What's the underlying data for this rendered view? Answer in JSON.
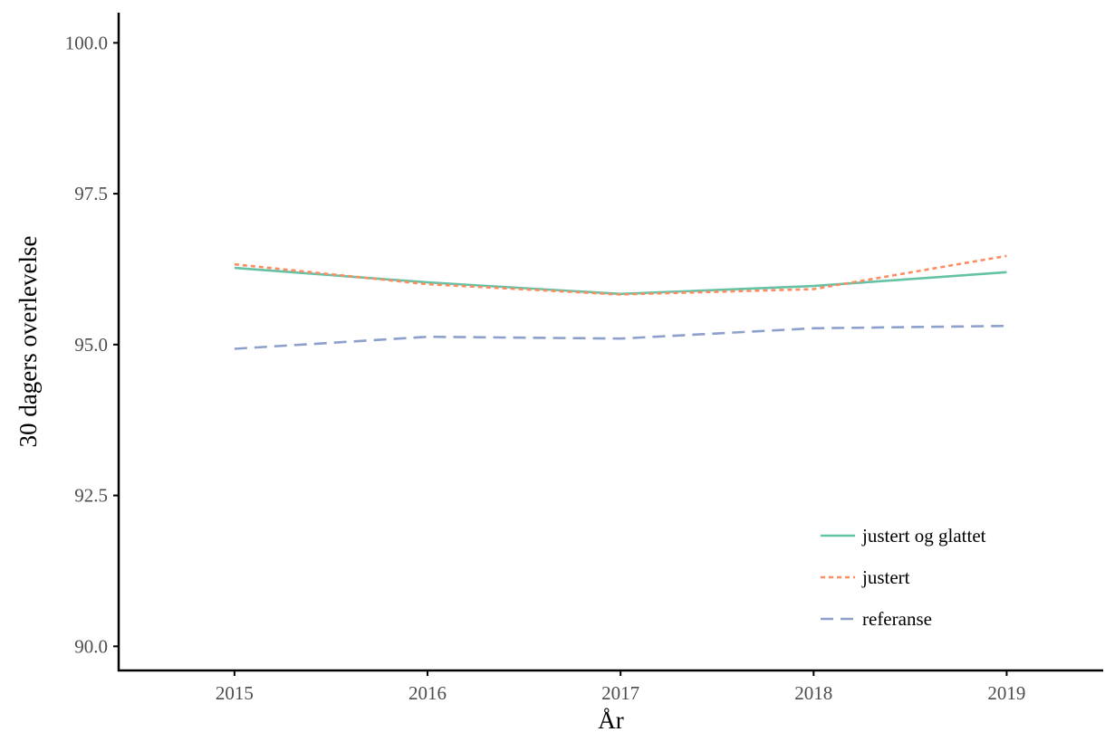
{
  "chart_data": {
    "type": "line",
    "title": "",
    "xlabel": "År",
    "ylabel": "30 dagers overlevelse",
    "x": [
      2015,
      2016,
      2017,
      2018,
      2019
    ],
    "x_tick_labels": [
      "2015",
      "2016",
      "2017",
      "2018",
      "2019"
    ],
    "xlim": [
      2014.4,
      2019.5
    ],
    "y_ticks": [
      90.0,
      92.5,
      95.0,
      97.5,
      100.0
    ],
    "y_tick_labels": [
      "90.0",
      "92.5",
      "95.0",
      "97.5",
      "100.0"
    ],
    "ylim": [
      89.6,
      100.5
    ],
    "grid": false,
    "legend_position": "bottom-right",
    "series": [
      {
        "name": "justert og glattet",
        "color": "#66c2a5",
        "dash": "solid",
        "values": [
          96.27,
          96.03,
          95.84,
          95.97,
          96.2
        ]
      },
      {
        "name": "justert",
        "color": "#fc8d62",
        "dash": "dotted",
        "values": [
          96.33,
          96.0,
          95.83,
          95.92,
          96.47
        ]
      },
      {
        "name": "referanse",
        "color": "#8da0cb",
        "dash": "dashed",
        "values": [
          94.93,
          95.13,
          95.1,
          95.27,
          95.31
        ]
      }
    ]
  }
}
